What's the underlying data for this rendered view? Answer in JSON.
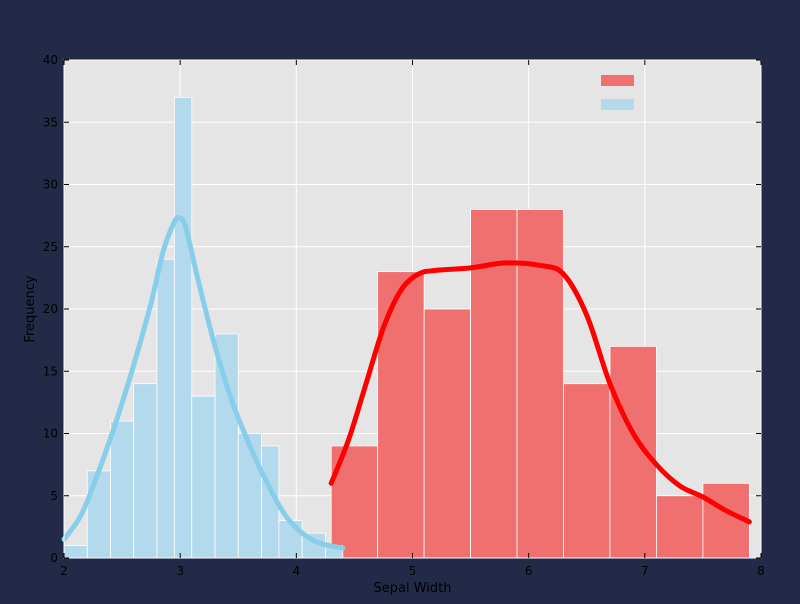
{
  "chart_data": {
    "type": "bar",
    "xlabel": "Sepal Width",
    "ylabel": "Frequency",
    "xlim": [
      2,
      8
    ],
    "ylim": [
      0,
      40
    ],
    "xticks": [
      2,
      3,
      4,
      5,
      6,
      7,
      8
    ],
    "yticks": [
      0,
      5,
      10,
      15,
      20,
      25,
      30,
      35,
      40
    ],
    "grid": true,
    "legend_position": "top-right",
    "legend_labels_visible": false,
    "colors": {
      "figure_bg": "#222a48",
      "plot_bg": "#e5e5e5",
      "grid": "#ffffff",
      "sepal_width_bars": "#b3d9ec",
      "sepal_width_kde": "#87ceeb",
      "sepal_length_bars": "#f07070",
      "sepal_length_kde": "#ff0000"
    },
    "series": [
      {
        "color_key": "sepal_length",
        "bins": [
          {
            "x0": 4.3,
            "x1": 4.7,
            "value": 9
          },
          {
            "x0": 4.7,
            "x1": 5.1,
            "value": 23
          },
          {
            "x0": 5.1,
            "x1": 5.5,
            "value": 20
          },
          {
            "x0": 5.5,
            "x1": 5.9,
            "value": 28
          },
          {
            "x0": 5.9,
            "x1": 6.3,
            "value": 28
          },
          {
            "x0": 6.3,
            "x1": 6.7,
            "value": 14
          },
          {
            "x0": 6.7,
            "x1": 7.1,
            "value": 17
          },
          {
            "x0": 7.1,
            "x1": 7.5,
            "value": 5
          },
          {
            "x0": 7.5,
            "x1": 7.9,
            "value": 6
          }
        ],
        "kde": [
          [
            4.3,
            6
          ],
          [
            4.45,
            9.5
          ],
          [
            4.6,
            14
          ],
          [
            4.75,
            18.5
          ],
          [
            4.9,
            21.5
          ],
          [
            5.05,
            22.8
          ],
          [
            5.2,
            23.1
          ],
          [
            5.5,
            23.3
          ],
          [
            5.8,
            23.7
          ],
          [
            6.1,
            23.5
          ],
          [
            6.3,
            22.8
          ],
          [
            6.5,
            19.5
          ],
          [
            6.7,
            14
          ],
          [
            6.9,
            10
          ],
          [
            7.1,
            7.5
          ],
          [
            7.3,
            5.8
          ],
          [
            7.5,
            4.9
          ],
          [
            7.7,
            3.8
          ],
          [
            7.9,
            2.9
          ]
        ]
      },
      {
        "color_key": "sepal_width",
        "bins": [
          {
            "x0": 2.0,
            "x1": 2.2,
            "value": 1
          },
          {
            "x0": 2.2,
            "x1": 2.4,
            "value": 7
          },
          {
            "x0": 2.4,
            "x1": 2.6,
            "value": 11
          },
          {
            "x0": 2.6,
            "x1": 2.8,
            "value": 14
          },
          {
            "x0": 2.8,
            "x1": 2.95,
            "value": 24
          },
          {
            "x0": 2.95,
            "x1": 3.1,
            "value": 37
          },
          {
            "x0": 3.1,
            "x1": 3.3,
            "value": 13
          },
          {
            "x0": 3.3,
            "x1": 3.5,
            "value": 18
          },
          {
            "x0": 3.5,
            "x1": 3.7,
            "value": 10
          },
          {
            "x0": 3.7,
            "x1": 3.85,
            "value": 9
          },
          {
            "x0": 3.85,
            "x1": 4.05,
            "value": 3
          },
          {
            "x0": 4.05,
            "x1": 4.25,
            "value": 2
          },
          {
            "x0": 4.25,
            "x1": 4.4,
            "value": 1
          }
        ],
        "kde": [
          [
            2.0,
            1.5
          ],
          [
            2.15,
            3.5
          ],
          [
            2.3,
            7
          ],
          [
            2.45,
            11
          ],
          [
            2.6,
            15.5
          ],
          [
            2.75,
            20.5
          ],
          [
            2.85,
            24.5
          ],
          [
            2.95,
            27
          ],
          [
            3.0,
            27.3
          ],
          [
            3.05,
            26.5
          ],
          [
            3.15,
            22.5
          ],
          [
            3.3,
            17
          ],
          [
            3.45,
            12.5
          ],
          [
            3.6,
            9
          ],
          [
            3.75,
            6
          ],
          [
            3.9,
            3.5
          ],
          [
            4.05,
            2
          ],
          [
            4.2,
            1.2
          ],
          [
            4.4,
            0.8
          ]
        ]
      }
    ]
  }
}
